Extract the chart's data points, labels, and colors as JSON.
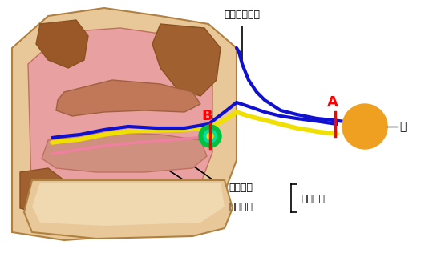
{
  "bg_color": "#ffffff",
  "nose_outer_color": "#e8c898",
  "nose_inner_color": "#e8a0a0",
  "nose_dark_color": "#c87840",
  "nerve_blue": "#1010d0",
  "nerve_yellow": "#f0e000",
  "nerve_pink": "#f080a0",
  "nerve_green_outer": "#00c040",
  "nerve_green_inner": "#00e0a0",
  "brain_color": "#f0a020",
  "label_A": "A",
  "label_B": "B",
  "label_tear": "涙の分泌神経",
  "label_brain": "脳",
  "label_secretory": "分泌神経",
  "label_sensory": "知覚神経",
  "label_posterior": "後鼻神経",
  "figsize": [
    5.3,
    3.16
  ],
  "dpi": 100
}
